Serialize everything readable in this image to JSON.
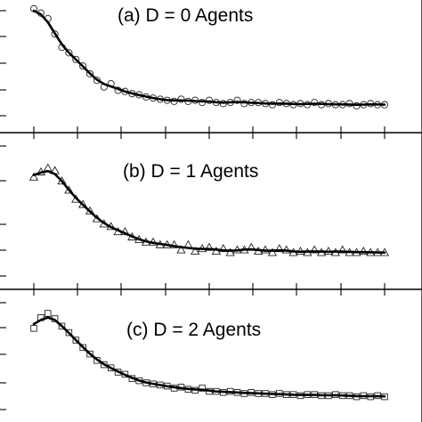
{
  "chart_data": [
    {
      "type": "scatter",
      "title": "(a) D = 0 Agents",
      "marker": "circle",
      "fit": "line",
      "xlim": [
        0,
        100
      ],
      "ylim": [
        0,
        100
      ],
      "x": [
        0,
        2,
        4,
        6,
        8,
        10,
        12,
        14,
        16,
        18,
        20,
        22,
        24,
        26,
        28,
        30,
        32,
        34,
        36,
        38,
        40,
        42,
        44,
        46,
        48,
        50,
        52,
        54,
        56,
        58,
        60,
        62,
        64,
        66,
        68,
        70,
        72,
        74,
        76,
        78,
        80,
        82,
        84,
        86,
        88,
        90,
        92,
        94,
        96,
        98,
        100
      ],
      "values": [
        97,
        93,
        88,
        74,
        62,
        57,
        51,
        45,
        38,
        32,
        26,
        29,
        23,
        22,
        20,
        19,
        17,
        16,
        15,
        14,
        13,
        15,
        13,
        14,
        12,
        14,
        12,
        11,
        12,
        14,
        11,
        12,
        12,
        11,
        10,
        12,
        11,
        10,
        11,
        10,
        12,
        10,
        11,
        10,
        10,
        11,
        9,
        10,
        11,
        10,
        10
      ]
    },
    {
      "type": "scatter",
      "title": "(b) D = 1 Agents",
      "marker": "triangle",
      "fit": "line",
      "xlim": [
        0,
        100
      ],
      "ylim": [
        0,
        100
      ],
      "x": [
        0,
        2,
        4,
        6,
        8,
        10,
        12,
        14,
        16,
        18,
        20,
        22,
        24,
        26,
        28,
        30,
        32,
        34,
        36,
        38,
        40,
        42,
        44,
        46,
        48,
        50,
        52,
        54,
        56,
        58,
        60,
        62,
        64,
        66,
        68,
        70,
        72,
        74,
        76,
        78,
        80,
        82,
        84,
        86,
        88,
        90,
        92,
        94,
        96,
        98,
        100
      ],
      "values": [
        76,
        80,
        83,
        81,
        73,
        66,
        59,
        55,
        50,
        44,
        40,
        38,
        34,
        34,
        30,
        28,
        26,
        26,
        24,
        24,
        24,
        20,
        24,
        19,
        21,
        22,
        19,
        21,
        18,
        20,
        20,
        22,
        19,
        20,
        18,
        21,
        20,
        18,
        19,
        18,
        20,
        18,
        19,
        18,
        20,
        18,
        18,
        19,
        18,
        18,
        18
      ]
    },
    {
      "type": "scatter",
      "title": "(c) D = 2 Agents",
      "marker": "square",
      "fit": "line",
      "xlim": [
        0,
        100
      ],
      "ylim": [
        0,
        100
      ],
      "x": [
        0,
        2,
        4,
        6,
        8,
        10,
        12,
        14,
        16,
        18,
        20,
        22,
        24,
        26,
        28,
        30,
        32,
        34,
        36,
        38,
        40,
        42,
        44,
        46,
        48,
        50,
        52,
        54,
        56,
        58,
        60,
        62,
        64,
        66,
        68,
        70,
        72,
        74,
        76,
        78,
        80,
        82,
        84,
        86,
        88,
        90,
        92,
        94,
        96,
        98,
        100
      ],
      "values": [
        76,
        86,
        90,
        85,
        78,
        72,
        65,
        58,
        52,
        46,
        42,
        39,
        35,
        33,
        29,
        27,
        25,
        24,
        23,
        22,
        20,
        21,
        19,
        18,
        20,
        17,
        17,
        16,
        17,
        16,
        15,
        16,
        15,
        15,
        14,
        15,
        14,
        14,
        13,
        14,
        14,
        13,
        13,
        14,
        13,
        13,
        12,
        13,
        12,
        13,
        12
      ]
    }
  ]
}
